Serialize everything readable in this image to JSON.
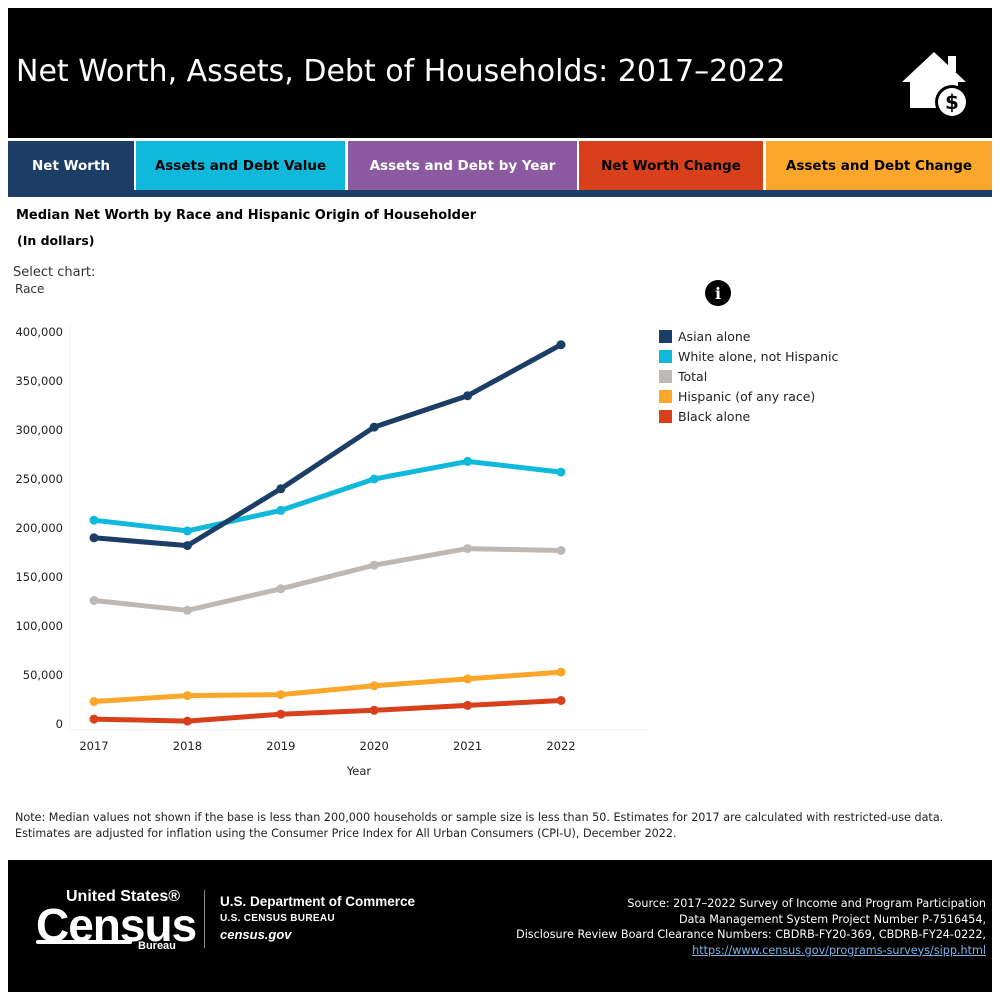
{
  "header": {
    "title": "Net Worth, Assets, Debt of Households: 2017–2022",
    "icon": "house-dollar-icon"
  },
  "tabs": [
    {
      "label": "Net Worth",
      "color": "#1b3d66",
      "text_color": "#ffffff",
      "active": true
    },
    {
      "label": "Assets and Debt Value",
      "color": "#10b9db",
      "text_color": "#000000",
      "active": false
    },
    {
      "label": "Assets and Debt by Year",
      "color": "#8c5aa0",
      "text_color": "#ffffff",
      "active": false
    },
    {
      "label": "Net Worth Change",
      "color": "#d8401b",
      "text_color": "#000000",
      "active": false
    },
    {
      "label": "Assets and Debt Change",
      "color": "#f9a62a",
      "text_color": "#000000",
      "active": false
    }
  ],
  "subtitle": "Median Net Worth by Race and Hispanic Origin of Householder",
  "subtitle_units": "(In dollars)",
  "select": {
    "label": "Select chart:",
    "value": "Race"
  },
  "info_icon": "info-icon",
  "chart_data": {
    "type": "line",
    "x": [
      2017,
      2018,
      2019,
      2020,
      2021,
      2022
    ],
    "xlabel": "Year",
    "ylabel": "",
    "ylim": [
      0,
      400000
    ],
    "yticks": [
      0,
      50000,
      100000,
      150000,
      200000,
      250000,
      300000,
      350000,
      400000
    ],
    "ytick_labels": [
      "0",
      "50,000",
      "100,000",
      "150,000",
      "200,000",
      "250,000",
      "300,000",
      "350,000",
      "400,000"
    ],
    "legend_position": "right",
    "series": [
      {
        "name": "Asian alone",
        "color": "#1b3d66",
        "values": [
          190000,
          182000,
          240000,
          303000,
          335000,
          387000
        ]
      },
      {
        "name": "White alone, not Hispanic",
        "color": "#10b9db",
        "values": [
          208000,
          197000,
          218000,
          250000,
          268000,
          257000
        ]
      },
      {
        "name": "Total",
        "color": "#bdb8b3",
        "values": [
          126000,
          116000,
          138000,
          162000,
          179000,
          177000
        ]
      },
      {
        "name": "Hispanic (of any race)",
        "color": "#f9a62a",
        "values": [
          23000,
          29000,
          30000,
          39000,
          46000,
          53000
        ]
      },
      {
        "name": "Black alone",
        "color": "#d8401b",
        "values": [
          5000,
          3000,
          10000,
          14000,
          19000,
          24000
        ]
      }
    ]
  },
  "note": "Note: Median values not shown if the base is less than 200,000 households or sample size is less than 50. Estimates for 2017 are calculated with restricted-use data. Estimates are adjusted for inflation using the Consumer Price Index for All Urban Consumers (CPI-U), December 2022.",
  "footer": {
    "logo_top": "United States®",
    "logo_main": "Census",
    "logo_bureau": "Bureau",
    "dept": "U.S. Department of Commerce",
    "bureau": "U.S. CENSUS BUREAU",
    "site": "census.gov",
    "source_lines": [
      "Source: 2017–2022 Survey of Income and Program Participation",
      "Data Management System Project Number P-7516454,",
      "Disclosure Review Board Clearance Numbers: CBDRB-FY20-369, CBDRB-FY24-0222,"
    ],
    "source_link": "https://www.census.gov/programs-surveys/sipp.html"
  }
}
